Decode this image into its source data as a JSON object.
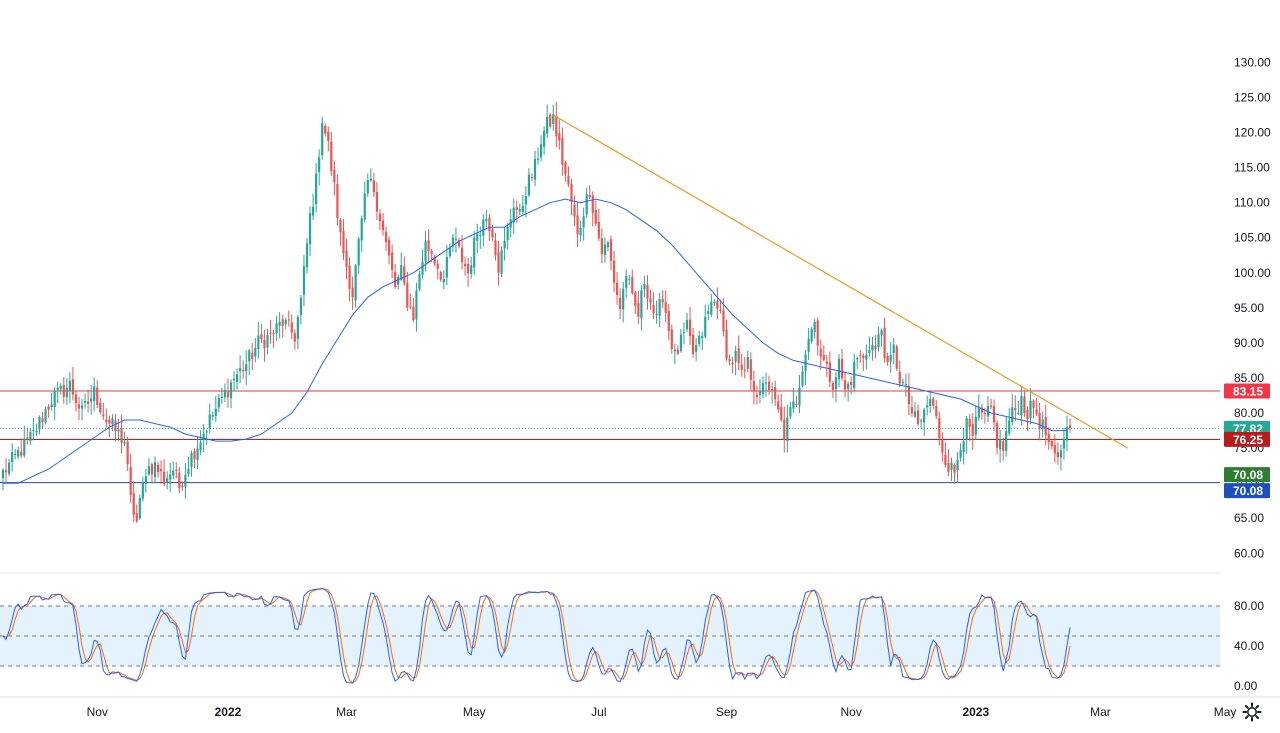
{
  "chart_data": {
    "type": "candlestick",
    "title": "",
    "x_ticks": [
      "Nov",
      "2022",
      "Mar",
      "May",
      "Jul",
      "Sep",
      "Nov",
      "2023",
      "Mar",
      "May"
    ],
    "y_ticks": [
      "130.00",
      "125.00",
      "120.00",
      "115.00",
      "110.00",
      "105.00",
      "100.00",
      "95.00",
      "90.00",
      "85.00",
      "80.00",
      "75.00",
      "70.00",
      "65.00",
      "60.00"
    ],
    "y_range": [
      57.9,
      133.2
    ],
    "x_anchors": [
      {
        "date": "2021-10-01",
        "idx": 0
      },
      {
        "date": "2021-11-01",
        "idx": 22
      },
      {
        "date": "2022-01-03",
        "idx": 64
      },
      {
        "date": "2022-03-01",
        "idx": 104
      },
      {
        "date": "2022-05-02",
        "idx": 145
      },
      {
        "date": "2022-07-01",
        "idx": 187
      },
      {
        "date": "2022-09-01",
        "idx": 230
      },
      {
        "date": "2022-11-01",
        "idx": 273
      },
      {
        "date": "2023-01-02",
        "idx": 314
      },
      {
        "date": "2023-02-07",
        "idx": 340
      },
      {
        "date": "2023-03-01",
        "idx": 355
      },
      {
        "date": "2023-05-01",
        "idx": 397
      }
    ],
    "close_path": [
      [
        0,
        71.5
      ],
      [
        10,
        77.0
      ],
      [
        16,
        82.0
      ],
      [
        22,
        84.0
      ],
      [
        26,
        80.0
      ],
      [
        30,
        83.0
      ],
      [
        34,
        79.0
      ],
      [
        37,
        77.5
      ],
      [
        40,
        76.0
      ],
      [
        42,
        67.5
      ],
      [
        44,
        64.5
      ],
      [
        47,
        72.0
      ],
      [
        50,
        72.5
      ],
      [
        53,
        70.5
      ],
      [
        56,
        72.0
      ],
      [
        58,
        69.5
      ],
      [
        61,
        73.0
      ],
      [
        64,
        75.5
      ],
      [
        68,
        79.0
      ],
      [
        72,
        82.0
      ],
      [
        76,
        85.0
      ],
      [
        80,
        87.0
      ],
      [
        84,
        90.0
      ],
      [
        88,
        91.0
      ],
      [
        92,
        93.0
      ],
      [
        96,
        91.0
      ],
      [
        98,
        96.0
      ],
      [
        101,
        108.0
      ],
      [
        103,
        113.0
      ],
      [
        105,
        122.0
      ],
      [
        107,
        118.0
      ],
      [
        109,
        112.0
      ],
      [
        111,
        105.0
      ],
      [
        113,
        101.0
      ],
      [
        115,
        97.0
      ],
      [
        117,
        104.0
      ],
      [
        120,
        113.0
      ],
      [
        122,
        112.0
      ],
      [
        124,
        108.0
      ],
      [
        127,
        102.0
      ],
      [
        129,
        98.0
      ],
      [
        131,
        100.0
      ],
      [
        133,
        96.0
      ],
      [
        135,
        94.0
      ],
      [
        137,
        100.0
      ],
      [
        139,
        104.0
      ],
      [
        141,
        103.0
      ],
      [
        143,
        101.0
      ],
      [
        145,
        99.0
      ],
      [
        148,
        105.0
      ],
      [
        151,
        102.0
      ],
      [
        153,
        100.0
      ],
      [
        156,
        106.0
      ],
      [
        159,
        108.0
      ],
      [
        161,
        106.0
      ],
      [
        163,
        101.0
      ],
      [
        165,
        104.0
      ],
      [
        168,
        110.0
      ],
      [
        170,
        108.0
      ],
      [
        172,
        112.0
      ],
      [
        175,
        115.0
      ],
      [
        177,
        119.0
      ],
      [
        179,
        121.0
      ],
      [
        181,
        122.0
      ],
      [
        183,
        118.0
      ],
      [
        185,
        114.0
      ],
      [
        187,
        110.0
      ],
      [
        189,
        105.0
      ],
      [
        191,
        109.0
      ],
      [
        193,
        112.0
      ],
      [
        195,
        107.0
      ],
      [
        197,
        103.0
      ],
      [
        199,
        104.0
      ],
      [
        201,
        99.0
      ],
      [
        203,
        95.0
      ],
      [
        205,
        100.0
      ],
      [
        207,
        96.0
      ],
      [
        209,
        94.0
      ],
      [
        211,
        99.0
      ],
      [
        213,
        96.0
      ],
      [
        215,
        93.0
      ],
      [
        217,
        97.0
      ],
      [
        219,
        92.0
      ],
      [
        221,
        88.0
      ],
      [
        223,
        90.0
      ],
      [
        225,
        92.0
      ],
      [
        227,
        88.5
      ],
      [
        229,
        90.0
      ],
      [
        231,
        93.0
      ],
      [
        233,
        95.5
      ],
      [
        235,
        96.0
      ],
      [
        237,
        91.0
      ],
      [
        239,
        87.0
      ],
      [
        241,
        88.0
      ],
      [
        243,
        85.0
      ],
      [
        245,
        87.0
      ],
      [
        247,
        84.0
      ],
      [
        249,
        82.0
      ],
      [
        251,
        85.0
      ],
      [
        253,
        82.5
      ],
      [
        255,
        80.0
      ],
      [
        257,
        77.0
      ],
      [
        259,
        80.0
      ],
      [
        261,
        82.0
      ],
      [
        263,
        87.0
      ],
      [
        265,
        91.0
      ],
      [
        267,
        93.0
      ],
      [
        269,
        88.5
      ],
      [
        271,
        86.0
      ],
      [
        273,
        84.5
      ],
      [
        275,
        87.0
      ],
      [
        277,
        83.0
      ],
      [
        279,
        85.0
      ],
      [
        281,
        88.0
      ],
      [
        283,
        87.5
      ],
      [
        285,
        90.0
      ],
      [
        287,
        89.0
      ],
      [
        289,
        92.0
      ],
      [
        291,
        86.0
      ],
      [
        293,
        89.0
      ],
      [
        295,
        85.0
      ],
      [
        297,
        83.0
      ],
      [
        299,
        80.0
      ],
      [
        301,
        78.0
      ],
      [
        303,
        80.0
      ],
      [
        305,
        82.0
      ],
      [
        307,
        79.0
      ],
      [
        309,
        75.0
      ],
      [
        311,
        72.5
      ],
      [
        313,
        71.5
      ],
      [
        315,
        76.0
      ],
      [
        317,
        78.0
      ],
      [
        319,
        76.5
      ],
      [
        321,
        80.0
      ],
      [
        323,
        79.0
      ],
      [
        325,
        80.5
      ],
      [
        327,
        76.0
      ],
      [
        329,
        75.0
      ],
      [
        331,
        79.0
      ],
      [
        333,
        80.5
      ],
      [
        335,
        82.0
      ],
      [
        337,
        80.0
      ],
      [
        339,
        81.0
      ],
      [
        341,
        79.0
      ],
      [
        343,
        77.0
      ],
      [
        345,
        74.0
      ],
      [
        347,
        73.0
      ],
      [
        349,
        77.0
      ],
      [
        351,
        77.82
      ]
    ],
    "ma_path": [
      [
        0,
        70.0
      ],
      [
        5,
        70.0
      ],
      [
        10,
        71.0
      ],
      [
        15,
        72.0
      ],
      [
        20,
        73.5
      ],
      [
        25,
        75.0
      ],
      [
        30,
        76.5
      ],
      [
        35,
        78.0
      ],
      [
        40,
        79.0
      ],
      [
        45,
        79.0
      ],
      [
        50,
        78.5
      ],
      [
        55,
        78.0
      ],
      [
        60,
        77.0
      ],
      [
        65,
        76.5
      ],
      [
        70,
        76.0
      ],
      [
        75,
        76.0
      ],
      [
        80,
        76.3
      ],
      [
        85,
        77.0
      ],
      [
        90,
        78.5
      ],
      [
        95,
        80.0
      ],
      [
        100,
        83.0
      ],
      [
        105,
        87.0
      ],
      [
        110,
        90.5
      ],
      [
        115,
        94.0
      ],
      [
        120,
        96.5
      ],
      [
        125,
        98.0
      ],
      [
        130,
        99.0
      ],
      [
        135,
        100.0
      ],
      [
        140,
        101.5
      ],
      [
        145,
        103.0
      ],
      [
        150,
        104.5
      ],
      [
        155,
        105.5
      ],
      [
        160,
        106.5
      ],
      [
        165,
        106.5
      ],
      [
        170,
        108.0
      ],
      [
        175,
        109.0
      ],
      [
        180,
        110.0
      ],
      [
        185,
        110.5
      ],
      [
        190,
        110.0
      ],
      [
        195,
        110.5
      ],
      [
        200,
        110.0
      ],
      [
        205,
        109.0
      ],
      [
        210,
        107.5
      ],
      [
        215,
        106.0
      ],
      [
        220,
        104.0
      ],
      [
        225,
        101.5
      ],
      [
        230,
        99.0
      ],
      [
        235,
        96.5
      ],
      [
        240,
        94.0
      ],
      [
        245,
        92.0
      ],
      [
        250,
        90.0
      ],
      [
        255,
        88.5
      ],
      [
        260,
        87.5
      ],
      [
        265,
        87.0
      ],
      [
        270,
        86.5
      ],
      [
        275,
        86.0
      ],
      [
        280,
        85.5
      ],
      [
        285,
        85.0
      ],
      [
        290,
        84.5
      ],
      [
        295,
        84.0
      ],
      [
        300,
        83.5
      ],
      [
        305,
        83.0
      ],
      [
        310,
        82.5
      ],
      [
        315,
        82.0
      ],
      [
        320,
        81.0
      ],
      [
        325,
        80.0
      ],
      [
        330,
        79.5
      ],
      [
        335,
        79.0
      ],
      [
        340,
        78.5
      ],
      [
        345,
        77.5
      ],
      [
        350,
        77.5
      ]
    ],
    "trendline": {
      "start": [
        181,
        122.5
      ],
      "end": [
        370,
        75.0
      ]
    },
    "horizontal_levels": [
      {
        "value": 83.15,
        "color": "#f23645",
        "label": "83.15"
      },
      {
        "value": 76.25,
        "color": "#8a1414",
        "label": "76.25"
      },
      {
        "value": 70.08,
        "color": "#1b4ea8",
        "label": "70.08"
      }
    ],
    "price_labels": [
      {
        "text": "83.15",
        "value": 83.15,
        "bg": "#f23645"
      },
      {
        "text": "77.82",
        "value": 77.82,
        "bg": "#22ab94"
      },
      {
        "text": "76.25",
        "value": 76.25,
        "bg": "#b71c1c"
      },
      {
        "text": "70.08",
        "value": 70.08,
        "bg": "#2e7d32",
        "offset": -1
      },
      {
        "text": "70.08",
        "value": 70.08,
        "bg": "#1e4fbf",
        "offset": 1
      }
    ],
    "last_price": 77.82,
    "stochastic": {
      "y_ticks": [
        "80.00",
        "40.00",
        "0.00"
      ],
      "bands": [
        80,
        50,
        20
      ],
      "y_range": [
        0,
        100
      ],
      "k_color": "#2962ff",
      "d_color": "#ff6d00"
    },
    "colors": {
      "up": "#26a69a",
      "down": "#ef5350",
      "ma": "#2962ff",
      "trend": "#f59a23",
      "band_fill": "#e3f2fd"
    }
  },
  "icons": {
    "settings": "gear-icon"
  }
}
